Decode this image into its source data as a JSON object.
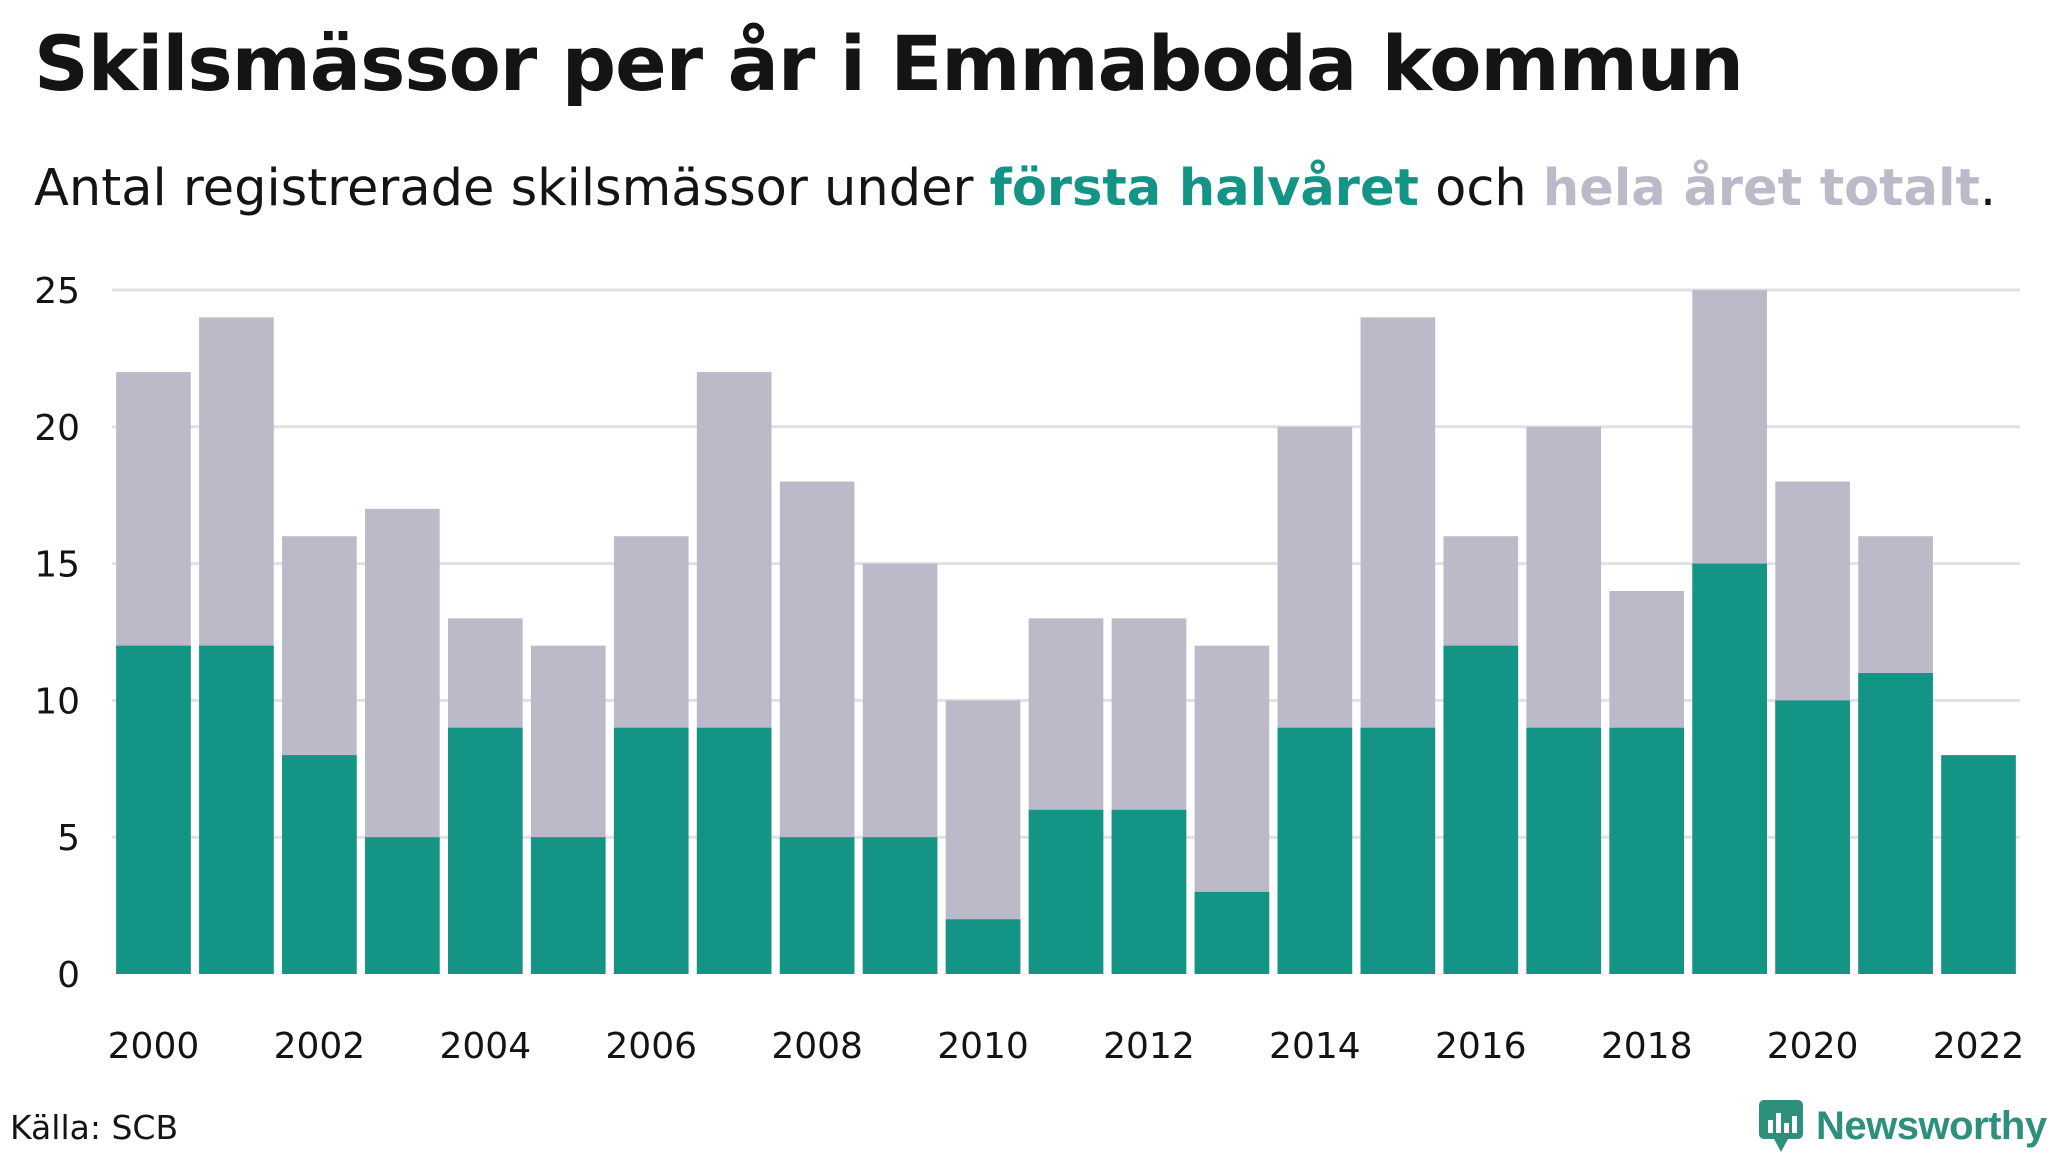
{
  "title": "Skilsmässor per år i Emmaboda kommun",
  "subtitle": {
    "prefix": "Antal registrerade skilsmässor under ",
    "first_half": "första halvåret",
    "middle": " och ",
    "total": "hela året totalt",
    "suffix": "."
  },
  "source": "Källa: SCB",
  "brand": "Newsworthy",
  "colors": {
    "first_half": "#139485",
    "total": "#bcbac8",
    "grid": "#e1e1e4",
    "text": "#141414",
    "brand": "#2e8f7c"
  },
  "chart_data": {
    "type": "bar",
    "stacking": "overlay",
    "years": [
      2000,
      2001,
      2002,
      2003,
      2004,
      2005,
      2006,
      2007,
      2008,
      2009,
      2010,
      2011,
      2012,
      2013,
      2014,
      2015,
      2016,
      2017,
      2018,
      2019,
      2020,
      2021,
      2022
    ],
    "x_ticks": [
      "2000",
      "2002",
      "2004",
      "2006",
      "2008",
      "2010",
      "2012",
      "2014",
      "2016",
      "2018",
      "2020",
      "2022"
    ],
    "y_ticks": [
      0,
      5,
      10,
      15,
      20,
      25
    ],
    "ylim": [
      0,
      25
    ],
    "grid": true,
    "series": [
      {
        "name": "hela året totalt",
        "color": "#bcbac8",
        "values": [
          22,
          24,
          16,
          17,
          13,
          12,
          16,
          22,
          18,
          15,
          10,
          13,
          13,
          12,
          20,
          24,
          16,
          20,
          14,
          25,
          18,
          16,
          null
        ]
      },
      {
        "name": "första halvåret",
        "color": "#139485",
        "values": [
          12,
          12,
          8,
          5,
          9,
          5,
          9,
          9,
          5,
          5,
          2,
          6,
          6,
          3,
          9,
          9,
          12,
          9,
          9,
          15,
          10,
          11,
          8
        ]
      }
    ]
  }
}
